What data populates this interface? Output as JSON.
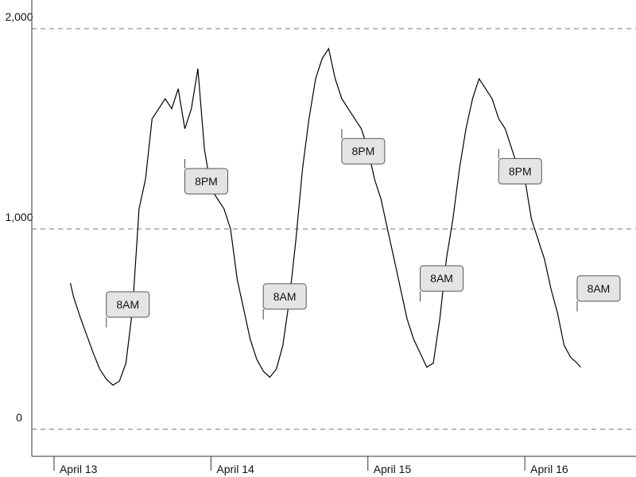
{
  "chart_data": {
    "type": "line",
    "x": [
      2.5,
      3,
      4,
      5,
      6,
      7,
      8,
      9,
      10,
      11,
      12,
      13,
      14,
      15,
      16,
      17,
      18,
      19,
      20,
      21,
      22,
      23,
      24,
      25,
      26,
      27,
      28,
      29,
      30,
      31,
      32,
      33,
      34,
      35,
      36,
      37,
      38,
      39,
      40,
      41,
      42,
      43,
      44,
      45,
      46,
      47,
      48,
      49,
      50,
      51,
      52,
      53,
      54,
      55,
      56,
      57,
      58,
      59,
      60,
      61,
      62,
      63,
      64,
      65,
      66,
      67,
      68,
      69,
      70,
      71,
      72,
      73,
      74,
      75,
      76,
      77,
      78,
      79,
      80,
      80.5
    ],
    "series": [
      {
        "color": "#000000",
        "values": [
          730,
          660,
          560,
          470,
          380,
          300,
          250,
          220,
          240,
          330,
          600,
          1100,
          1250,
          1550,
          1600,
          1650,
          1600,
          1700,
          1500,
          1600,
          1800,
          1400,
          1200,
          1150,
          1100,
          1000,
          750,
          600,
          450,
          350,
          290,
          260,
          300,
          420,
          650,
          950,
          1300,
          1550,
          1750,
          1850,
          1900,
          1750,
          1650,
          1600,
          1550,
          1500,
          1400,
          1250,
          1150,
          1000,
          850,
          700,
          550,
          450,
          380,
          310,
          330,
          550,
          850,
          1050,
          1300,
          1500,
          1650,
          1750,
          1700,
          1650,
          1550,
          1500,
          1400,
          1300,
          1250,
          1050,
          950,
          850,
          700,
          580,
          420,
          360,
          330,
          310
        ]
      }
    ],
    "xlim": [
      -3.4,
      89
    ],
    "xticks": [
      {
        "value": 0,
        "label": "April 13"
      },
      {
        "value": 24,
        "label": "April 14"
      },
      {
        "value": 48,
        "label": "April 15"
      },
      {
        "value": 72,
        "label": "April 16"
      }
    ],
    "ylim": [
      -135,
      2143
    ],
    "yticks": [
      0,
      {
        "value": 1000,
        "label": "1,000"
      },
      {
        "value": 2000,
        "label": "2,000"
      }
    ],
    "grid": true,
    "annotations": [
      {
        "text": "8AM",
        "x": 8,
        "y": 250,
        "position": "above"
      },
      {
        "text": "8PM",
        "x": 20,
        "y": 1500,
        "position": "below"
      },
      {
        "text": "8AM",
        "x": 32,
        "y": 290,
        "position": "above"
      },
      {
        "text": "8PM",
        "x": 44,
        "y": 1650,
        "position": "below"
      },
      {
        "text": "8AM",
        "x": 56,
        "y": 380,
        "position": "above"
      },
      {
        "text": "8PM",
        "x": 68,
        "y": 1550,
        "position": "below"
      },
      {
        "text": "8AM",
        "x": 80,
        "y": 330,
        "position": "above"
      }
    ]
  }
}
